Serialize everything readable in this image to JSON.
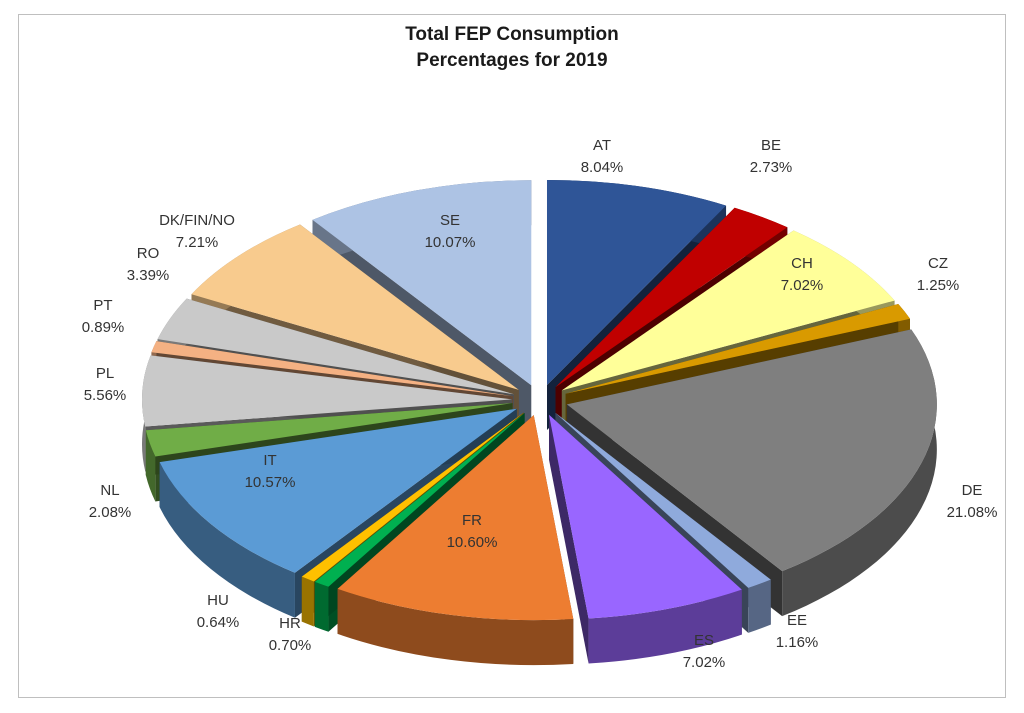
{
  "chart_data": {
    "type": "pie",
    "variant": "3d-exploded",
    "title": "Total FEP Consumption Percentages for 2019",
    "title_lines": [
      "Total FEP Consumption",
      "Percentages for 2019"
    ],
    "unit": "%",
    "slices": [
      {
        "label": "AT",
        "value": 8.04,
        "display": "8.04%",
        "color": "#2f5597"
      },
      {
        "label": "BE",
        "value": 2.73,
        "display": "2.73%",
        "color": "#c00000"
      },
      {
        "label": "CH",
        "value": 7.02,
        "display": "7.02%",
        "color": "#ffff99"
      },
      {
        "label": "CZ",
        "value": 1.25,
        "display": "1.25%",
        "color": "#d99a00"
      },
      {
        "label": "DE",
        "value": 21.08,
        "display": "21.08%",
        "color": "#7f7f7f"
      },
      {
        "label": "EE",
        "value": 1.16,
        "display": "1.16%",
        "color": "#8faadc"
      },
      {
        "label": "ES",
        "value": 7.02,
        "display": "7.02%",
        "color": "#9966ff"
      },
      {
        "label": "FR",
        "value": 10.6,
        "display": "10.60%",
        "color": "#ed7d31"
      },
      {
        "label": "HR",
        "value": 0.7,
        "display": "0.70%",
        "color": "#00b050"
      },
      {
        "label": "HU",
        "value": 0.64,
        "display": "0.64%",
        "color": "#ffc000"
      },
      {
        "label": "IT",
        "value": 10.57,
        "display": "10.57%",
        "color": "#5b9bd5"
      },
      {
        "label": "NL",
        "value": 2.08,
        "display": "2.08%",
        "color": "#70ad47"
      },
      {
        "label": "PL",
        "value": 5.56,
        "display": "5.56%",
        "color": "#c9c9c9"
      },
      {
        "label": "PT",
        "value": 0.89,
        "display": "0.89%",
        "color": "#f4b183"
      },
      {
        "label": "RO",
        "value": 3.39,
        "display": "3.39%",
        "color": "#c9c9c9"
      },
      {
        "label": "DK/FIN/NO",
        "value": 7.21,
        "display": "7.21%",
        "color": "#f8cb8e"
      },
      {
        "label": "SE",
        "value": 10.07,
        "display": "10.07%",
        "color": "#adc3e4"
      }
    ],
    "legend": "none",
    "data_labels": "category-and-percent"
  }
}
